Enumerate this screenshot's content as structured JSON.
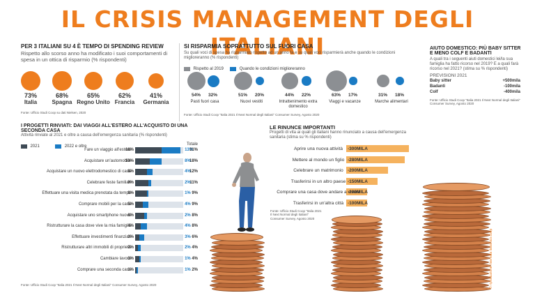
{
  "title": "IL CRISIS MANAGEMENT DEGLI ITALIANI",
  "spending_review": {
    "title": "PER 3 ITALIANI SU 4 È TEMPO DI SPENDING REVIEW",
    "subtitle": "Rispetto allo scorso anno ha modificato i suoi comportamenti di spesa in un ottica di risparmio (% rispondenti)",
    "source": "Fonte: Ufficio Studi Coop su dati Nielsen, 2020",
    "countries": [
      {
        "name": "Italia",
        "pct": "73%"
      },
      {
        "name": "Spagna",
        "pct": "68%"
      },
      {
        "name": "Regno Unito",
        "pct": "65%"
      },
      {
        "name": "Francia",
        "pct": "62%"
      },
      {
        "name": "Germania",
        "pct": "41%"
      }
    ]
  },
  "savings": {
    "title": "SI RISPARMIA SOPRATTUTTO SUL FUORI CASA",
    "subtitle": "Su quali voci di spesa ha risparmiato rispetto ad un anno fa e su quali voci risparmierà anche quando le condizioni miglioreranno (% rispondenti)",
    "legend_2019": "Rispetto al 2019",
    "legend_better": "Quando le condizioni miglioreranno",
    "source": "Fonte: Ufficio Studi Coop \"Italia 2021 Il Next Normal degli Italiani\" Consumer Survey, Agosto 2020",
    "items": [
      {
        "label": "Pasti fuori casa",
        "v2019": "54%",
        "vbetter": "32%"
      },
      {
        "label": "Nuovi vestiti",
        "v2019": "51%",
        "vbetter": "20%"
      },
      {
        "label": "Intrattenimento extra domestico",
        "v2019": "44%",
        "vbetter": "22%"
      },
      {
        "label": "Viaggi e vacanze",
        "v2019": "63%",
        "vbetter": "17%"
      },
      {
        "label": "Marche alimentari",
        "v2019": "31%",
        "vbetter": "18%"
      }
    ]
  },
  "aid": {
    "title": "AIUTO DOMESTICO: PIÙ BABY SITTER E MENO COLF E BADANTI",
    "subtitle": "A quali tra i seguenti aiuti domestici lei/la sua famiglia ha fatto ricorso nel 2019? E a quali farà ricorso nel 2021? (stima su % rispondenti)",
    "forecast_label": "PREVISIONI 2021",
    "rows": [
      {
        "label": "Baby sitter",
        "value": "+500mila"
      },
      {
        "label": "Badanti",
        "value": "-100mila"
      },
      {
        "label": "Colf",
        "value": "-400mila"
      }
    ],
    "source": "Fonte: Ufficio Studi Coop \"Italia 2021 Il Next Normal degli Italiani\" Consumer Survey, Agosto 2020"
  },
  "projects": {
    "title": "I PROGETTI RINVIATI: DAI VIAGGI ALL'ESTERO ALL'ACQUISTO DI UNA SECONDA CASA",
    "subtitle": "Attività rinviate al 2021 e oltre a causa dell'emergenza sanitaria (% rispondenti)",
    "legend_2021": "2021",
    "legend_2022": "2022 e oltre",
    "total_label": "Totale",
    "source": "Fonte: Ufficio Studi Coop \"Italia 2021 Il Next Normal degli Italiani\" Consumer Survey, Agosto 2020",
    "rows": [
      {
        "label": "Fare un viaggio all'estero",
        "v2021": "18%",
        "v2022": "13%",
        "total": "31%"
      },
      {
        "label": "Acquistare un'automobile",
        "v2021": "10%",
        "v2022": "8%",
        "total": "18%"
      },
      {
        "label": "Acquistare un nuovo elettrodomestico di casa",
        "v2021": "8%",
        "v2022": "4%",
        "total": "12%"
      },
      {
        "label": "Celebrare feste familiari",
        "v2021": "9%",
        "v2022": "2%",
        "total": "11%"
      },
      {
        "label": "Effettuare una visita medica prenotata da tempo",
        "v2021": "8%",
        "v2022": "1%",
        "total": "9%"
      },
      {
        "label": "Comprare mobili per la casa",
        "v2021": "5%",
        "v2022": "4%",
        "total": "9%"
      },
      {
        "label": "Acquistare uno smartphone nuovo",
        "v2021": "6%",
        "v2022": "2%",
        "total": "8%"
      },
      {
        "label": "Ristrutturare la casa dove vive la mia famiglia",
        "v2021": "4%",
        "v2022": "4%",
        "total": "8%"
      },
      {
        "label": "Effettuare investimenti finanziari",
        "v2021": "3%",
        "v2022": "3%",
        "total": "6%"
      },
      {
        "label": "Ristrutturare altri immobili di proprietà",
        "v2021": "2%",
        "v2022": "2%",
        "total": "4%"
      },
      {
        "label": "Cambiare lavoro",
        "v2021": "3%",
        "v2022": "1%",
        "total": "4%"
      },
      {
        "label": "Comprare una seconda casa",
        "v2021": "1%",
        "v2022": "1%",
        "total": "2%"
      }
    ]
  },
  "renounce": {
    "title": "LE RINUNCE IMPORTANTI",
    "subtitle": "Progetti di vita ai quali gli italiani hanno rinunciato a causa dell'emergenza sanitaria (stima su % rispondenti)",
    "source": "Fonte: Ufficio Studi Coop \"Italia 2021 Il Next Normal degli Italiani\" Consumer Survey, Agosto 2020",
    "rows": [
      {
        "label": "Aprire una nuova attività",
        "value": "-300MILA"
      },
      {
        "label": "Mettere al mondo un figlio",
        "value": "-280MILA"
      },
      {
        "label": "Celebrare un matrimonio",
        "value": "-200MILA"
      },
      {
        "label": "Trasferirsi in un altro paese",
        "value": "-150MILA"
      },
      {
        "label": "Comprare una casa dove andare a vivere",
        "value": "-100MILA"
      },
      {
        "label": "Trasferirsi in un'altra città",
        "value": "-100MILA"
      }
    ]
  },
  "credit": "© riproduzione riservata italianico.coop",
  "colors": {
    "orange": "#ee7d1e",
    "blue": "#1a7bc4",
    "dark": "#3e4a55",
    "grey": "#8c8f93",
    "light_orange": "#f5b25e"
  },
  "chart_data": [
    {
      "type": "bar",
      "title": "PER 3 ITALIANI SU 4 È TEMPO DI SPENDING REVIEW",
      "categories": [
        "Italia",
        "Spagna",
        "Regno Unito",
        "Francia",
        "Germania"
      ],
      "values": [
        73,
        68,
        65,
        62,
        41
      ]
    },
    {
      "type": "bar",
      "title": "SI RISPARMIA SOPRATTUTTO SUL FUORI CASA",
      "categories": [
        "Pasti fuori casa",
        "Nuovi vestiti",
        "Intrattenimento extra domestico",
        "Viaggi e vacanze",
        "Marche alimentari"
      ],
      "series": [
        {
          "name": "Rispetto al 2019",
          "values": [
            54,
            51,
            44,
            63,
            31
          ]
        },
        {
          "name": "Quando le condizioni miglioreranno",
          "values": [
            32,
            20,
            22,
            17,
            18
          ]
        }
      ]
    },
    {
      "type": "bar",
      "title": "I PROGETTI RINVIATI: DAI VIAGGI ALL'ESTERO ALL'ACQUISTO DI UNA SECONDA CASA",
      "categories": [
        "Fare un viaggio all'estero",
        "Acquistare un'automobile",
        "Acquistare un nuovo elettrodomestico di casa",
        "Celebrare feste familiari",
        "Effettuare una visita medica prenotata da tempo",
        "Comprare mobili per la casa",
        "Acquistare uno smartphone nuovo",
        "Ristrutturare la casa dove vive la mia famiglia",
        "Effettuare investimenti finanziari",
        "Ristrutturare altri immobili di proprietà",
        "Cambiare lavoro",
        "Comprare una seconda casa"
      ],
      "series": [
        {
          "name": "2021",
          "values": [
            18,
            10,
            8,
            9,
            8,
            5,
            6,
            4,
            3,
            2,
            3,
            1
          ]
        },
        {
          "name": "2022 e oltre",
          "values": [
            13,
            8,
            4,
            2,
            1,
            4,
            2,
            4,
            3,
            2,
            1,
            1
          ]
        }
      ],
      "totals": [
        31,
        18,
        12,
        11,
        9,
        9,
        8,
        8,
        6,
        4,
        4,
        2
      ]
    },
    {
      "type": "bar",
      "title": "LE RINUNCE IMPORTANTI",
      "categories": [
        "Aprire una nuova attività",
        "Mettere al mondo un figlio",
        "Celebrare un matrimonio",
        "Trasferirsi in un altro paese",
        "Comprare una casa dove andare a vivere",
        "Trasferirsi in un'altra città"
      ],
      "values": [
        -300000,
        -280000,
        -200000,
        -150000,
        -100000,
        -100000
      ]
    }
  ]
}
